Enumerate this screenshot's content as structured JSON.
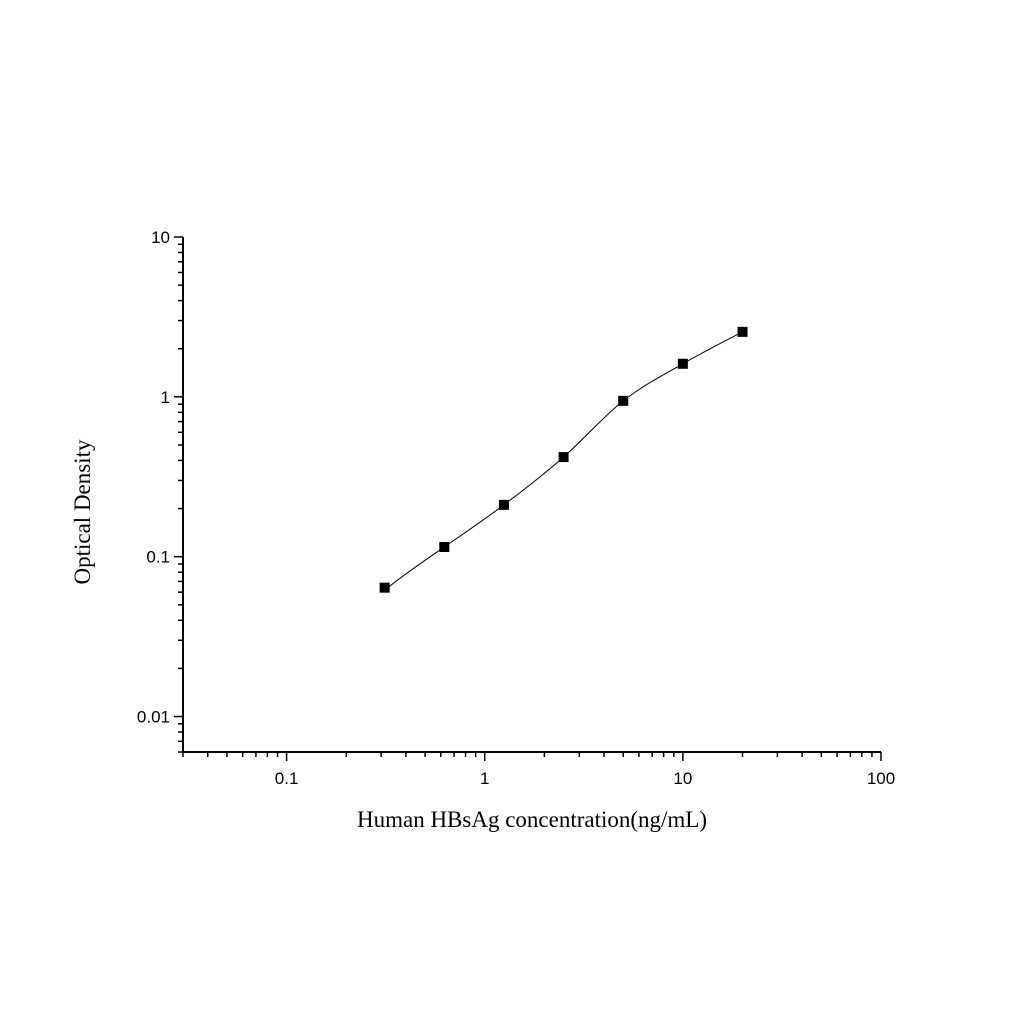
{
  "chart_data": {
    "type": "scatter",
    "title": "",
    "xlabel": "Human HBsAg concentration(ng/mL)",
    "ylabel": "Optical Density",
    "x_scale": "log",
    "y_scale": "log",
    "xlim": [
      0.03,
      100
    ],
    "ylim": [
      0.006,
      10
    ],
    "x_ticks": [
      {
        "value": 0.1,
        "label": "0.1"
      },
      {
        "value": 1,
        "label": "1"
      },
      {
        "value": 10,
        "label": "10"
      },
      {
        "value": 100,
        "label": "100"
      }
    ],
    "y_ticks": [
      {
        "value": 0.01,
        "label": "0.01"
      },
      {
        "value": 0.1,
        "label": "0.1"
      },
      {
        "value": 1,
        "label": "1"
      },
      {
        "value": 10,
        "label": "10"
      }
    ],
    "grid": false,
    "legend": "none",
    "marker": "square",
    "fit_line": "smooth curve through points",
    "colors": {
      "marker": "#000000",
      "line": "#000000"
    },
    "series": [
      {
        "x": [
          0.3125,
          0.625,
          1.25,
          2.5,
          5,
          10,
          20
        ],
        "y": [
          0.064,
          0.115,
          0.211,
          0.42,
          0.944,
          1.61,
          2.55
        ]
      }
    ]
  }
}
